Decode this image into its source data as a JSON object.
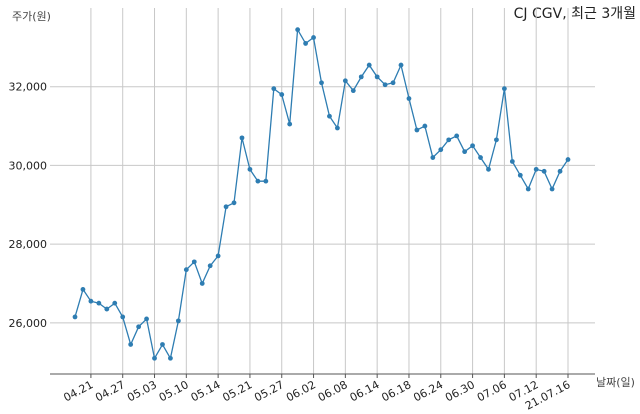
{
  "chart_data": {
    "type": "line",
    "title": "CJ CGV, 최근 3개월",
    "ylabel": "주가(원)",
    "xlabel": "날짜(일)",
    "ylim": [
      24700,
      34000
    ],
    "yticks": [
      26000,
      28000,
      30000,
      32000
    ],
    "ytick_labels": [
      "26,000",
      "28,000",
      "30,000",
      "32,000"
    ],
    "xtick_labels": [
      "04.21",
      "04.27",
      "05.03",
      "05.10",
      "05.14",
      "05.21",
      "05.27",
      "06.02",
      "06.08",
      "06.14",
      "06.18",
      "06.24",
      "06.30",
      "07.06",
      "07.12",
      "21.07.16"
    ],
    "xtick_positions": [
      2,
      6,
      10,
      14,
      18,
      22,
      26,
      30,
      34,
      38,
      42,
      46,
      50,
      54,
      58,
      62
    ],
    "grid": true,
    "series": [
      {
        "color": "#2e7db2",
        "values": [
          26150,
          26850,
          26550,
          26500,
          26350,
          26500,
          26150,
          25450,
          25900,
          26100,
          25100,
          25450,
          25100,
          26050,
          27350,
          27550,
          27000,
          27450,
          27700,
          28950,
          29050,
          30700,
          29900,
          29600,
          29600,
          31950,
          31800,
          31050,
          33450,
          33100,
          33250,
          32100,
          31250,
          30950,
          32150,
          31900,
          32250,
          32550,
          32250,
          32050,
          32100,
          32550,
          31700,
          30900,
          31000,
          30200,
          30400,
          30650,
          30750,
          30350,
          30500,
          30200,
          29900,
          30650,
          31950,
          30100,
          29750,
          29400,
          29900,
          29850,
          29400,
          29850,
          30150
        ]
      }
    ]
  }
}
